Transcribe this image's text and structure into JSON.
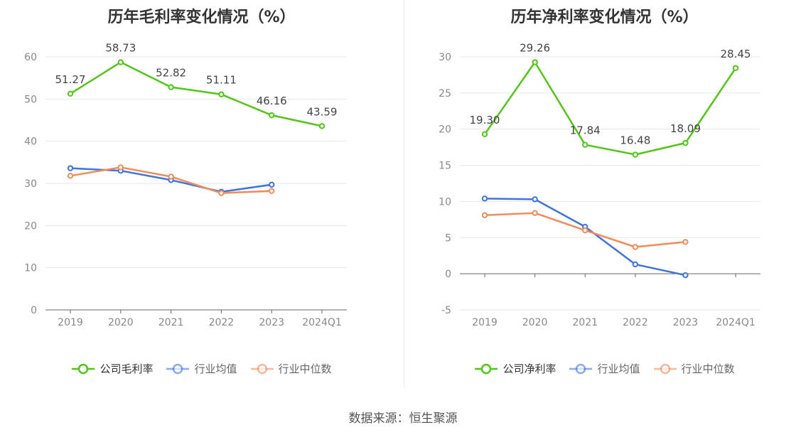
{
  "colors": {
    "company": "#52c41a",
    "industry_avg": "#3f74e0",
    "industry_median": "#f08c5a",
    "axis": "#666666",
    "grid": "#e6e6e6",
    "tick_text": "#888888"
  },
  "source": "数据来源：恒生聚源",
  "chart_data": [
    {
      "type": "line",
      "title": "历年毛利率变化情况（%）",
      "categories": [
        "2019",
        "2020",
        "2021",
        "2022",
        "2023",
        "2024Q1"
      ],
      "ylim": [
        0,
        60
      ],
      "yticks": [
        0,
        10,
        20,
        30,
        40,
        50,
        60
      ],
      "grid": true,
      "legend_position": "bottom",
      "series": [
        {
          "name": "公司毛利率",
          "key": "company",
          "values": [
            51.27,
            58.73,
            52.82,
            51.11,
            46.16,
            43.59
          ],
          "labels": [
            "51.27",
            "58.73",
            "52.82",
            "51.11",
            "46.16",
            "43.59"
          ]
        },
        {
          "name": "行业均值",
          "key": "industry_avg",
          "values": [
            33.6,
            33.0,
            30.8,
            28.0,
            29.7,
            null
          ]
        },
        {
          "name": "行业中位数",
          "key": "industry_median",
          "values": [
            31.8,
            33.8,
            31.6,
            27.7,
            28.2,
            null
          ]
        }
      ]
    },
    {
      "type": "line",
      "title": "历年净利率变化情况（%）",
      "categories": [
        "2019",
        "2020",
        "2021",
        "2022",
        "2023",
        "2024Q1"
      ],
      "ylim": [
        -5,
        30
      ],
      "yticks": [
        -5,
        0,
        5,
        10,
        15,
        20,
        25,
        30
      ],
      "grid": true,
      "legend_position": "bottom",
      "series": [
        {
          "name": "公司净利率",
          "key": "company",
          "values": [
            19.3,
            29.26,
            17.84,
            16.48,
            18.09,
            28.45
          ],
          "labels": [
            "19.30",
            "29.26",
            "17.84",
            "16.48",
            "18.09",
            "28.45"
          ]
        },
        {
          "name": "行业均值",
          "key": "industry_avg",
          "values": [
            10.4,
            10.3,
            6.5,
            1.3,
            -0.2,
            null
          ]
        },
        {
          "name": "行业中位数",
          "key": "industry_median",
          "values": [
            8.1,
            8.4,
            6.0,
            3.7,
            4.4,
            null
          ]
        }
      ]
    }
  ]
}
